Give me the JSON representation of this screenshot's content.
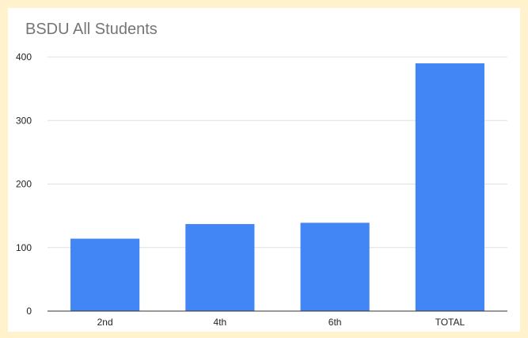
{
  "chart_data": {
    "type": "bar",
    "title": "BSDU All Students",
    "xlabel": "",
    "ylabel": "",
    "categories": [
      "2nd",
      "4th",
      "6th",
      "TOTAL"
    ],
    "values": [
      114,
      137,
      139,
      390
    ],
    "ylim": [
      0,
      400
    ],
    "yticks": [
      0,
      100,
      200,
      300,
      400
    ],
    "grid": true,
    "legend": "none",
    "bar_color": "#4285f4",
    "gridline_color": "#e0e0e0",
    "axis_color": "#333333"
  }
}
